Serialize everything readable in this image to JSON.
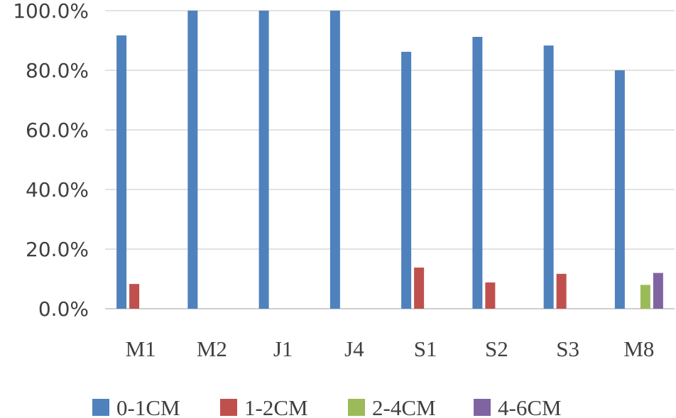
{
  "chart_data": {
    "type": "bar",
    "categories": [
      "M1",
      "M2",
      "J1",
      "J4",
      "S1",
      "S2",
      "S3",
      "M8"
    ],
    "series": [
      {
        "name": "0-1CM",
        "color": "#4f81bd",
        "values": [
          91.7,
          100,
          100,
          100,
          86.2,
          91.2,
          88.3,
          80.0
        ]
      },
      {
        "name": "1-2CM",
        "color": "#c0504d",
        "values": [
          8.3,
          0,
          0,
          0,
          13.8,
          8.8,
          11.7,
          0
        ]
      },
      {
        "name": "2-4CM",
        "color": "#9bbb59",
        "values": [
          0,
          0,
          0,
          0,
          0,
          0,
          0,
          8.0
        ]
      },
      {
        "name": "4-6CM",
        "color": "#8064a2",
        "values": [
          0,
          0,
          0,
          0,
          0,
          0,
          0,
          12.0
        ]
      }
    ],
    "y_ticks": [
      "0.0%",
      "20.0%",
      "40.0%",
      "60.0%",
      "80.0%",
      "100.0%"
    ],
    "ylim": [
      0,
      100
    ],
    "grid": true,
    "legend_position": "bottom"
  }
}
